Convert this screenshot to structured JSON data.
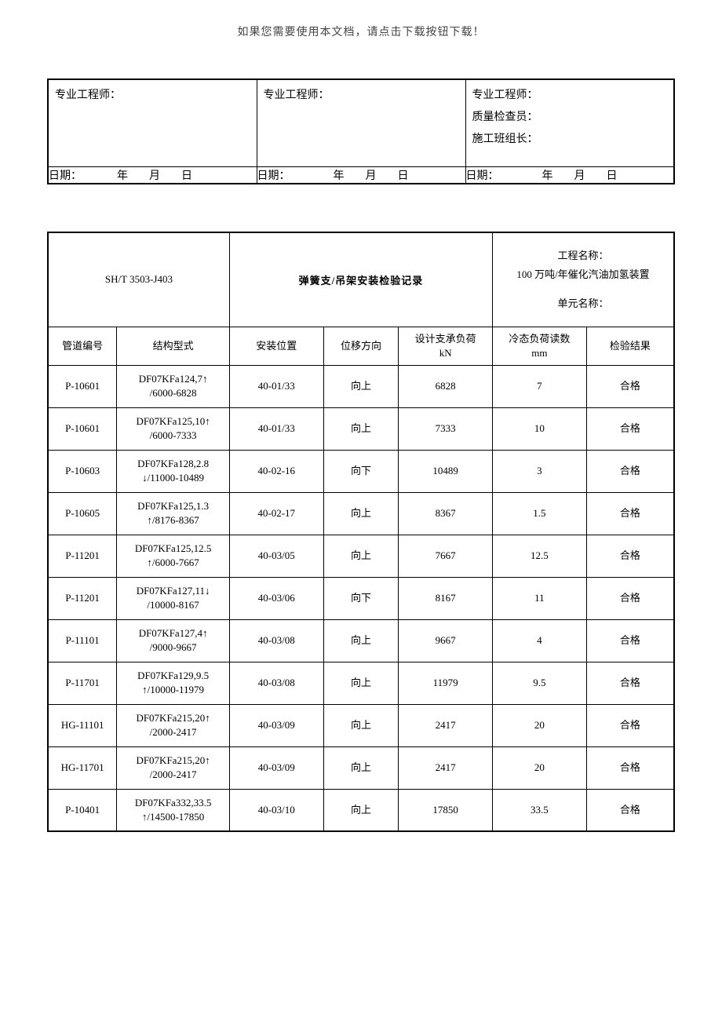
{
  "header_note": "如果您需要使用本文档，请点击下载按钮下载！",
  "signature": {
    "col1": {
      "label_engineer": "专业工程师："
    },
    "col2": {
      "label_engineer": "专业工程师："
    },
    "col3": {
      "label_engineer": "专业工程师：",
      "label_inspector": "质量检查员：",
      "label_team": "施工班组长："
    },
    "date_label": "日期：",
    "year": "年",
    "month": "月",
    "day": "日"
  },
  "doc_code": "SH/T 3503-J403",
  "title": "弹簧支/吊架安装检验记录",
  "project": {
    "name_label": "工程名称：",
    "name_value": "100 万吨/年催化汽油加氢装置",
    "unit_label": "单元名称："
  },
  "columns": {
    "c1": "管道编号",
    "c2": "结构型式",
    "c3": "安装位置",
    "c4": "位移方向",
    "c5_l1": "设计支承负荷",
    "c5_l2": "kN",
    "c6_l1": "冷态负荷读数",
    "c6_l2": "mm",
    "c7": "检验结果"
  },
  "rows": [
    {
      "pipe": "P-10601",
      "struct_l1": "DF07KFa124,7↑",
      "struct_l2": "/6000-6828",
      "pos": "40-01/33",
      "dir": "向上",
      "load": "6828",
      "cold": "7",
      "result": "合格"
    },
    {
      "pipe": "P-10601",
      "struct_l1": "DF07KFa125,10↑",
      "struct_l2": "/6000-7333",
      "pos": "40-01/33",
      "dir": "向上",
      "load": "7333",
      "cold": "10",
      "result": "合格"
    },
    {
      "pipe": "P-10603",
      "struct_l1": "DF07KFa128,2.8",
      "struct_l2": "↓/11000-10489",
      "pos": "40-02-16",
      "dir": "向下",
      "load": "10489",
      "cold": "3",
      "result": "合格"
    },
    {
      "pipe": "P-10605",
      "struct_l1": "DF07KFa125,1.3",
      "struct_l2": "↑/8176-8367",
      "pos": "40-02-17",
      "dir": "向上",
      "load": "8367",
      "cold": "1.5",
      "result": "合格"
    },
    {
      "pipe": "P-11201",
      "struct_l1": "DF07KFa125,12.5",
      "struct_l2": "↑/6000-7667",
      "pos": "40-03/05",
      "dir": "向上",
      "load": "7667",
      "cold": "12.5",
      "result": "合格"
    },
    {
      "pipe": "P-11201",
      "struct_l1": "DF07KFa127,11↓",
      "struct_l2": "/10000-8167",
      "pos": "40-03/06",
      "dir": "向下",
      "load": "8167",
      "cold": "11",
      "result": "合格"
    },
    {
      "pipe": "P-11101",
      "struct_l1": "DF07KFa127,4↑",
      "struct_l2": "/9000-9667",
      "pos": "40-03/08",
      "dir": "向上",
      "load": "9667",
      "cold": "4",
      "result": "合格"
    },
    {
      "pipe": "P-11701",
      "struct_l1": "DF07KFa129,9.5",
      "struct_l2": "↑/10000-11979",
      "pos": "40-03/08",
      "dir": "向上",
      "load": "11979",
      "cold": "9.5",
      "result": "合格"
    },
    {
      "pipe": "HG-11101",
      "struct_l1": "DF07KFa215,20↑",
      "struct_l2": "/2000-2417",
      "pos": "40-03/09",
      "dir": "向上",
      "load": "2417",
      "cold": "20",
      "result": "合格"
    },
    {
      "pipe": "HG-11701",
      "struct_l1": "DF07KFa215,20↑",
      "struct_l2": "/2000-2417",
      "pos": "40-03/09",
      "dir": "向上",
      "load": "2417",
      "cold": "20",
      "result": "合格"
    },
    {
      "pipe": "P-10401",
      "struct_l1": "DF07KFa332,33.5",
      "struct_l2": "↑/14500-17850",
      "pos": "40-03/10",
      "dir": "向上",
      "load": "17850",
      "cold": "33.5",
      "result": "合格"
    }
  ]
}
